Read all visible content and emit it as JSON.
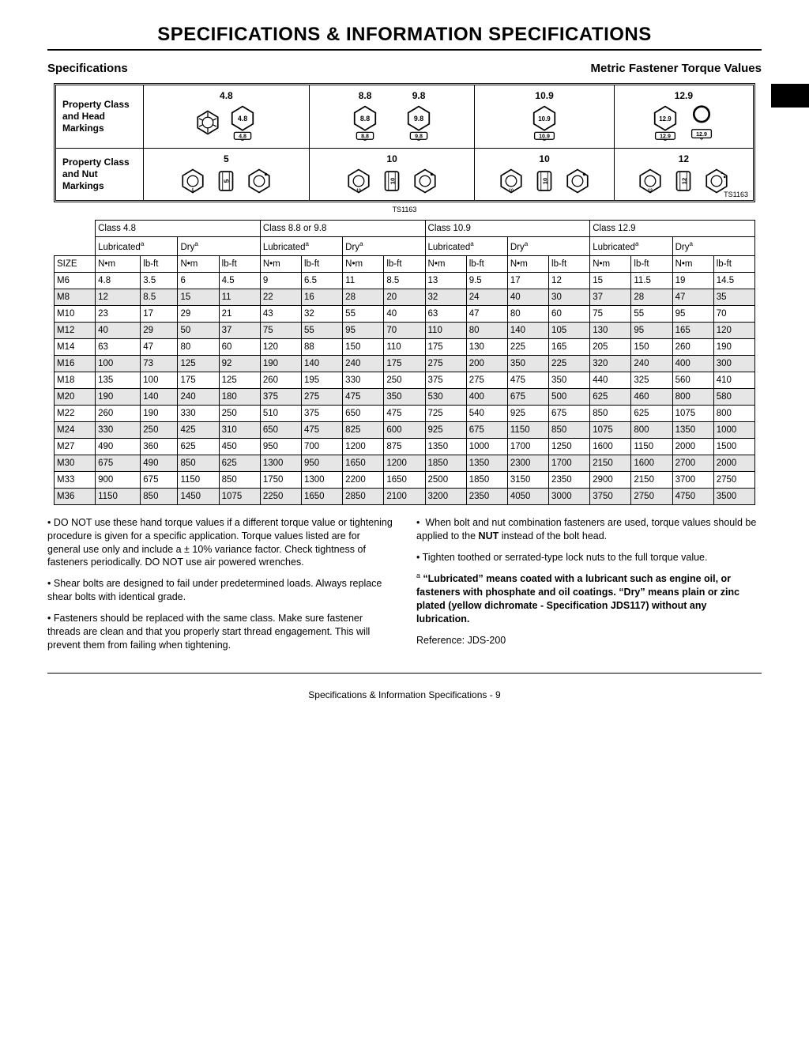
{
  "page": {
    "title": "SPECIFICATIONS & INFORMATION   SPECIFICATIONS",
    "spec_heading": "Specifications",
    "torque_heading": "Metric Fastener Torque Values",
    "footer": "Specifications & Information   Specifications  - 9"
  },
  "diagram": {
    "head_label": "Property Class and Head Markings",
    "nut_label": "Property Class and Nut Markings",
    "ref_code": "TS1163",
    "head_classes": [
      "4.8",
      "8.8",
      "9.8",
      "10.9",
      "12.9"
    ],
    "nut_classes": [
      "5",
      "10",
      "10",
      "12"
    ]
  },
  "torque_table": {
    "class_headers": [
      "Class 4.8",
      "Class 8.8 or 9.8",
      "Class 10.9",
      "Class 12.9"
    ],
    "condition_headers": [
      "Lubricated",
      "Dry"
    ],
    "unit_headers": [
      "N•m",
      "lb-ft"
    ],
    "size_label": "SIZE",
    "footnote_mark": "a",
    "rows": [
      {
        "size": "M6",
        "v": [
          4.8,
          3.5,
          6,
          4.5,
          9,
          6.5,
          11,
          8.5,
          13,
          9.5,
          17,
          12,
          15,
          11.5,
          19,
          14.5
        ]
      },
      {
        "size": "M8",
        "v": [
          12,
          8.5,
          15,
          11,
          22,
          16,
          28,
          20,
          32,
          24,
          40,
          30,
          37,
          28,
          47,
          35
        ]
      },
      {
        "size": "M10",
        "v": [
          23,
          17,
          29,
          21,
          43,
          32,
          55,
          40,
          63,
          47,
          80,
          60,
          75,
          55,
          95,
          70
        ]
      },
      {
        "size": "M12",
        "v": [
          40,
          29,
          50,
          37,
          75,
          55,
          95,
          70,
          110,
          80,
          140,
          105,
          130,
          95,
          165,
          120
        ]
      },
      {
        "size": "M14",
        "v": [
          63,
          47,
          80,
          60,
          120,
          88,
          150,
          110,
          175,
          130,
          225,
          165,
          205,
          150,
          260,
          190
        ]
      },
      {
        "size": "M16",
        "v": [
          100,
          73,
          125,
          92,
          190,
          140,
          240,
          175,
          275,
          200,
          350,
          225,
          320,
          240,
          400,
          300
        ]
      },
      {
        "size": "M18",
        "v": [
          135,
          100,
          175,
          125,
          260,
          195,
          330,
          250,
          375,
          275,
          475,
          350,
          440,
          325,
          560,
          410
        ]
      },
      {
        "size": "M20",
        "v": [
          190,
          140,
          240,
          180,
          375,
          275,
          475,
          350,
          530,
          400,
          675,
          500,
          625,
          460,
          800,
          580
        ]
      },
      {
        "size": "M22",
        "v": [
          260,
          190,
          330,
          250,
          510,
          375,
          650,
          475,
          725,
          540,
          925,
          675,
          850,
          625,
          1075,
          800
        ]
      },
      {
        "size": "M24",
        "v": [
          330,
          250,
          425,
          310,
          650,
          475,
          825,
          600,
          925,
          675,
          1150,
          850,
          1075,
          800,
          1350,
          1000
        ]
      },
      {
        "size": "M27",
        "v": [
          490,
          360,
          625,
          450,
          950,
          700,
          1200,
          875,
          1350,
          1000,
          1700,
          1250,
          1600,
          1150,
          2000,
          1500
        ]
      },
      {
        "size": "M30",
        "v": [
          675,
          490,
          850,
          625,
          1300,
          950,
          1650,
          1200,
          1850,
          1350,
          2300,
          1700,
          2150,
          1600,
          2700,
          2000
        ]
      },
      {
        "size": "M33",
        "v": [
          900,
          675,
          1150,
          850,
          1750,
          1300,
          2200,
          1650,
          2500,
          1850,
          3150,
          2350,
          2900,
          2150,
          3700,
          2750
        ]
      },
      {
        "size": "M36",
        "v": [
          1150,
          850,
          1450,
          1075,
          2250,
          1650,
          2850,
          2100,
          3200,
          2350,
          4050,
          3000,
          3750,
          2750,
          4750,
          3500
        ]
      }
    ],
    "colors": {
      "border": "#000000",
      "shade": "#e6e6e6",
      "background": "#ffffff"
    }
  },
  "notes": {
    "left": [
      "DO NOT use these hand torque values if a different torque value or tightening procedure is given for a specific application. Torque values listed are for general use only and include a ± 10% variance factor. Check tightness of fasteners periodically. DO NOT use air powered wrenches.",
      "Shear bolts are designed to fail under predetermined loads. Always replace shear bolts with identical grade.",
      "Fasteners should be replaced with the same class. Make sure fastener threads are clean and that you properly start thread engagement. This will prevent them from failing when tightening."
    ],
    "right_plain": [
      "When bolt and nut combination fasteners are used, torque values should be applied to the NUT instead of the bolt head.",
      "Tighten toothed or serrated-type lock nuts to the full torque value."
    ],
    "footnote": "“Lubricated” means coated with a lubricant such as engine oil, or fasteners with phosphate and oil coatings. “Dry” means plain or zinc plated (yellow dichromate - Specification JDS117) without any lubrication.",
    "reference": "Reference: JDS-200"
  }
}
